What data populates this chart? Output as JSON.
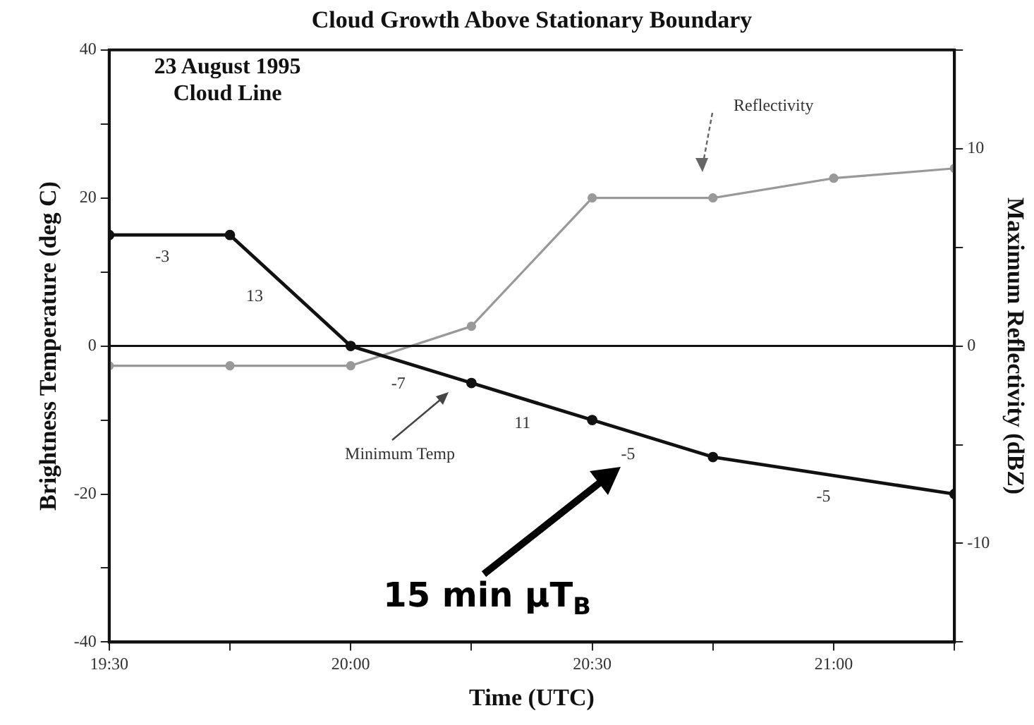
{
  "chart_data": {
    "type": "line",
    "title": "Cloud Growth Above Stationary Boundary",
    "xlabel": "Time (UTC)",
    "ylabel": "Brightness Temperature (deg C)",
    "y2label": "Maximum Reflectivity (dBZ)",
    "x": [
      19.5,
      19.75,
      20,
      20.25,
      20.5,
      20.75,
      21.25
    ],
    "series": [
      {
        "color": "#111111",
        "values": [
          15,
          15,
          0,
          -5,
          -10,
          -15,
          -20
        ]
      },
      {
        "color": "#999999",
        "axis": "y2",
        "x": [
          19.5,
          19.75,
          20,
          20.25,
          20.5,
          20.75,
          21,
          21.25
        ],
        "values": [
          -1,
          -1,
          -1,
          1,
          7.5,
          7.5,
          8.5,
          9
        ]
      }
    ],
    "xlim": [
      19.5,
      21.25
    ],
    "xticks": [
      {
        "value": 19.5,
        "label": "19:30"
      },
      {
        "value": 19.75,
        "label": null
      },
      {
        "value": 20,
        "label": "20:00"
      },
      {
        "value": 20.25,
        "label": null
      },
      {
        "value": 20.5,
        "label": "20:30"
      },
      {
        "value": 20.75,
        "label": null
      },
      {
        "value": 21,
        "label": "21:00"
      },
      {
        "value": 21.25,
        "label": null
      }
    ],
    "ylim": [
      -40,
      40
    ],
    "yticks": [
      -40,
      {
        "value": -30,
        "label": null
      },
      -20,
      {
        "value": -10,
        "label": null
      },
      0,
      {
        "value": 10,
        "label": null
      },
      20,
      {
        "value": 30,
        "label": null
      },
      40
    ],
    "y2lim": [
      -15,
      15
    ],
    "y2ticks": [
      {
        "value": -15,
        "label": null
      },
      -10,
      {
        "value": -5,
        "label": null
      },
      0,
      {
        "value": 5,
        "label": null
      },
      10,
      {
        "value": 15,
        "label": null
      }
    ],
    "ref_lines": [
      {
        "axis": "y",
        "value": 0,
        "color": "#111111"
      }
    ],
    "grid": false,
    "legend": false,
    "marker": "circle",
    "line_style": "solid",
    "annotations": [
      "23 August 1995",
      "Cloud Line",
      "-3",
      "13",
      "-7",
      "11",
      "-5",
      "-5",
      "Reflectivity",
      "Minimum Temp",
      "15 min μT$_{B}$"
    ]
  }
}
